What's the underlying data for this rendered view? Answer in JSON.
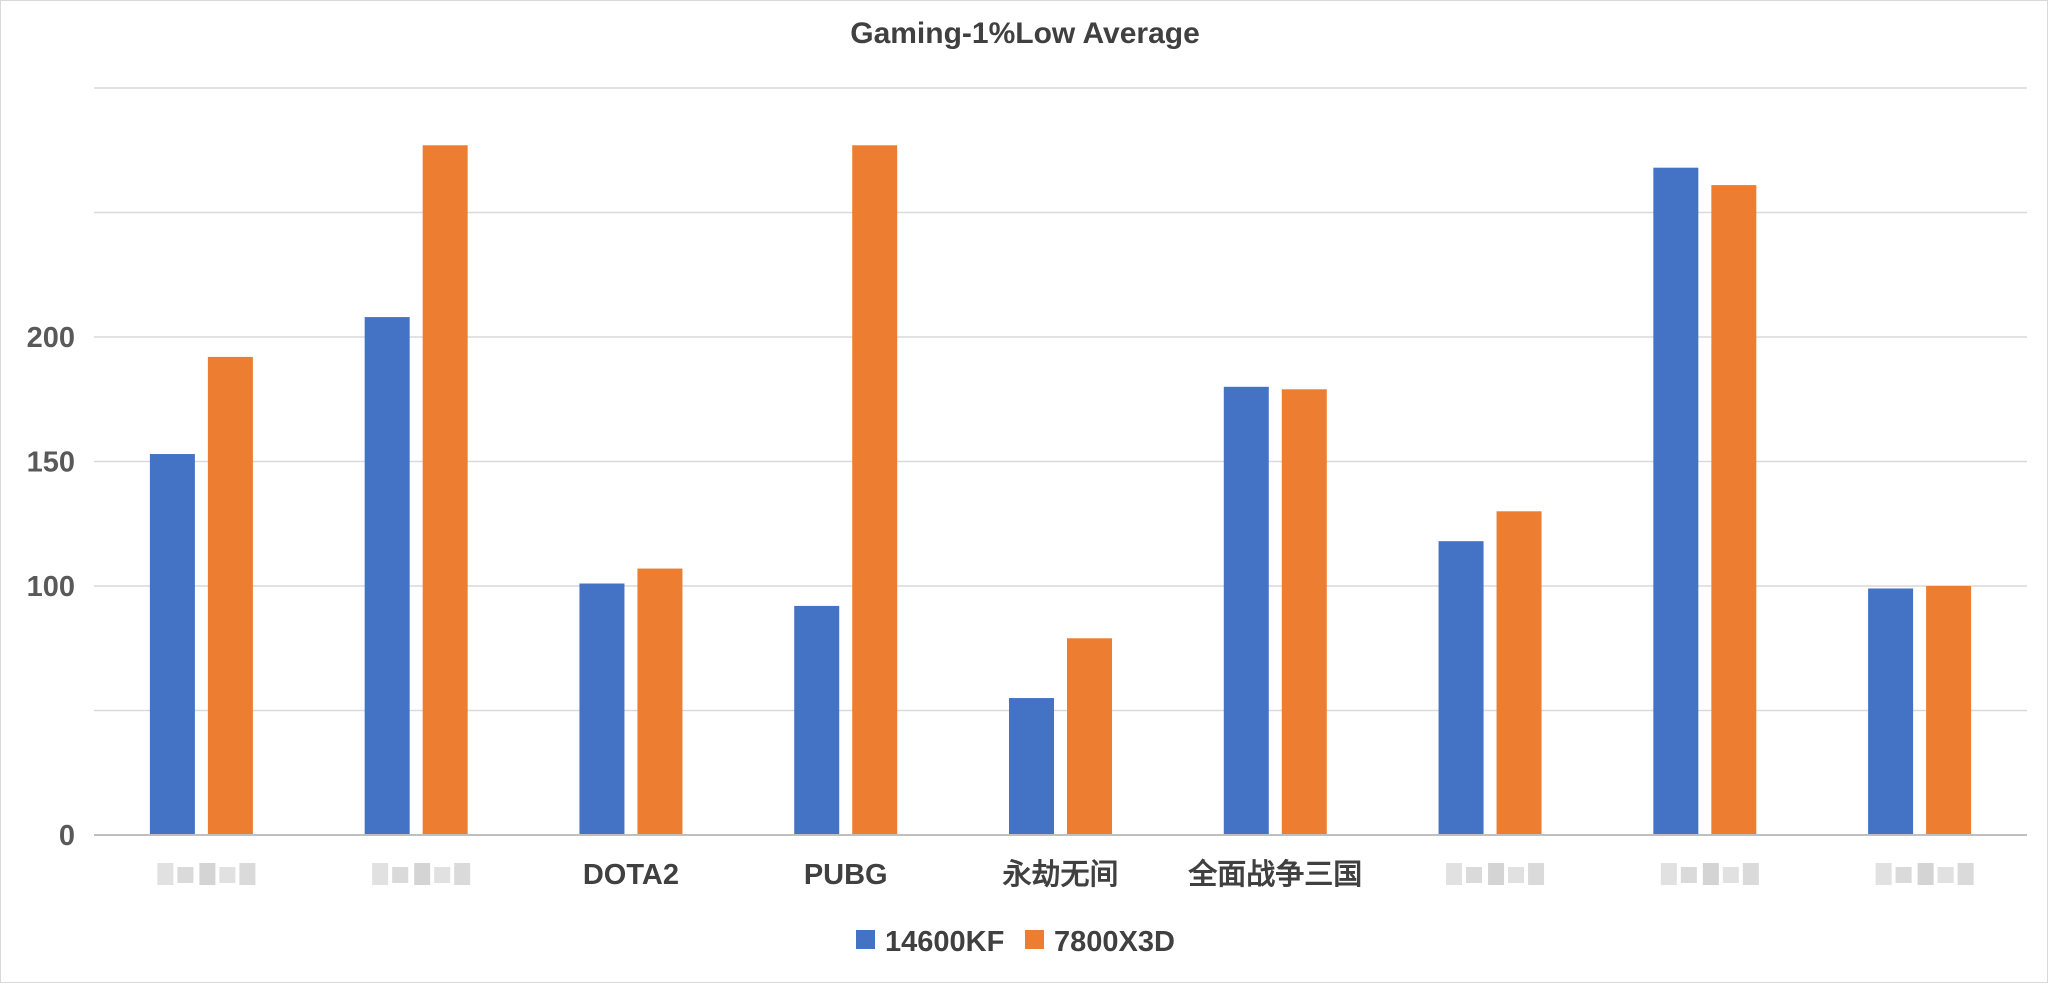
{
  "chart_data": {
    "type": "bar",
    "title": "Gaming-1%Low Average",
    "xlabel": "",
    "ylabel": "",
    "ylim": [
      0,
      300
    ],
    "yticks": [
      0,
      50,
      100,
      150,
      200,
      250,
      300
    ],
    "ytick_labels": [
      "0",
      "",
      "100",
      "150",
      "200",
      "",
      ""
    ],
    "categories": [
      "",
      "",
      "DOTA2",
      "PUBG",
      "永劫无间",
      "全面战争三国",
      "",
      "",
      ""
    ],
    "series": [
      {
        "name": "14600KF",
        "color": "#4472C4",
        "values": [
          153,
          208,
          101,
          92,
          55,
          180,
          118,
          268,
          99
        ]
      },
      {
        "name": "7800X3D",
        "color": "#ED7D31",
        "values": [
          192,
          277,
          107,
          277,
          79,
          179,
          130,
          261,
          100
        ]
      }
    ],
    "grid": true,
    "legend": "bottom-center"
  }
}
